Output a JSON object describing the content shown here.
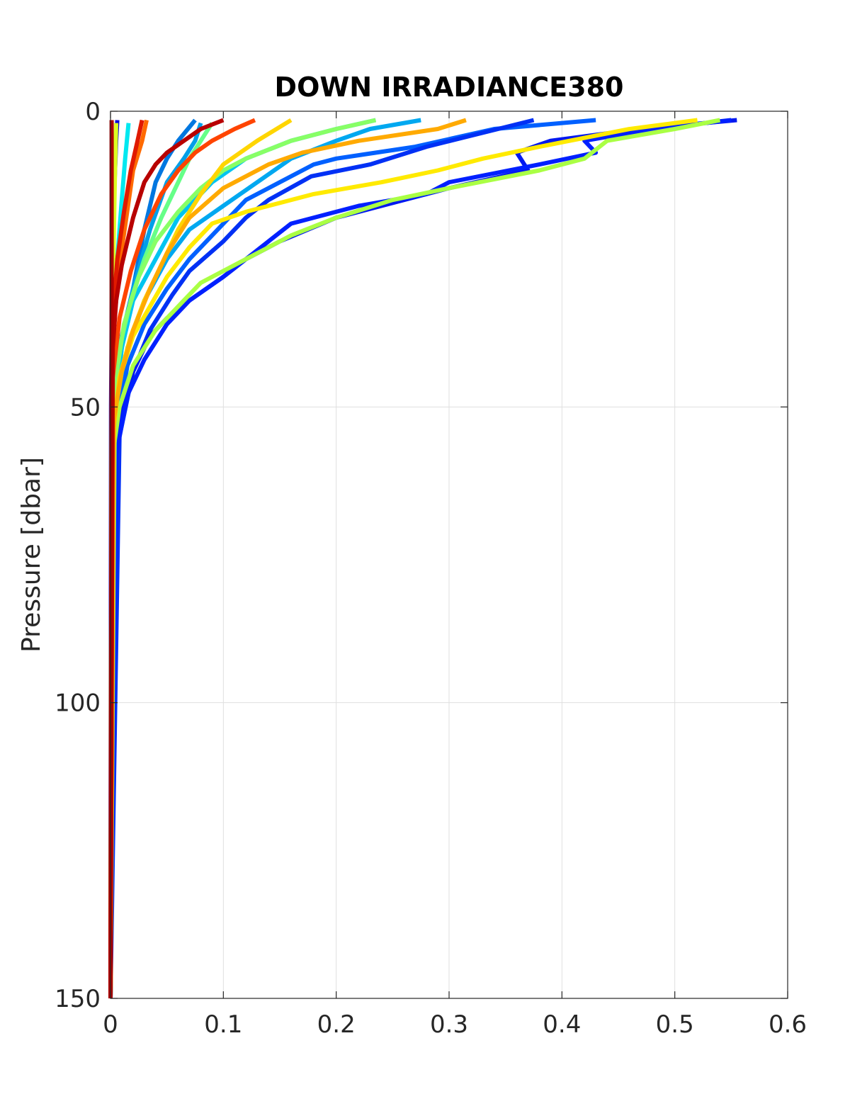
{
  "chart_data": {
    "type": "line",
    "title": "DOWN IRRADIANCE380",
    "xlabel": "",
    "ylabel": "Pressure [dbar]",
    "xlim": [
      0,
      0.6
    ],
    "ylim": [
      150,
      0
    ],
    "y_reversed": true,
    "xticks": [
      "0",
      "0.1",
      "0.2",
      "0.3",
      "0.4",
      "0.5",
      "0.6"
    ],
    "yticks": [
      "0",
      "50",
      "100",
      "150"
    ],
    "grid": true,
    "legend": "none",
    "series": [
      {
        "color": "#0a0ad8",
        "x": [
          0.006,
          0.005,
          0.004,
          0.002,
          0.001,
          0.0005,
          0
        ],
        "y": [
          1.5,
          5,
          10,
          20,
          35,
          50,
          150
        ]
      },
      {
        "color": "#0077e0",
        "x": [
          0.075,
          0.06,
          0.05,
          0.04,
          0.03,
          0.02,
          0.01,
          0.005,
          0.002,
          0
        ],
        "y": [
          1.5,
          5,
          8,
          12,
          20,
          30,
          38,
          45,
          55,
          150
        ]
      },
      {
        "color": "#009fe8",
        "x": [
          0.08,
          0.075,
          0.065,
          0.05,
          0.035,
          0.02,
          0.01,
          0.004,
          0
        ],
        "y": [
          2,
          5,
          8,
          12,
          20,
          30,
          40,
          50,
          150
        ]
      },
      {
        "color": "#00e8f0",
        "x": [
          0.016,
          0.013,
          0.01,
          0.006,
          0.003,
          0.001,
          0
        ],
        "y": [
          2,
          8,
          15,
          25,
          35,
          45,
          150
        ]
      },
      {
        "color": "#00c4f0",
        "x": [
          0.235,
          0.2,
          0.16,
          0.12,
          0.09,
          0.06,
          0.04,
          0.02,
          0.01,
          0.003,
          0
        ],
        "y": [
          1.5,
          3,
          5,
          8,
          12,
          18,
          25,
          32,
          40,
          52,
          150
        ]
      },
      {
        "color": "#00a8f0",
        "x": [
          0.275,
          0.23,
          0.2,
          0.16,
          0.13,
          0.1,
          0.07,
          0.05,
          0.03,
          0.015,
          0.004,
          0
        ],
        "y": [
          1.5,
          3,
          5,
          8,
          12,
          16,
          20,
          25,
          32,
          40,
          52,
          150
        ]
      },
      {
        "color": "#0060ff",
        "x": [
          0.43,
          0.34,
          0.27,
          0.2,
          0.18,
          0.14,
          0.12,
          0.095,
          0.07,
          0.05,
          0.03,
          0.015,
          0.004,
          0
        ],
        "y": [
          1.5,
          3,
          6,
          8,
          9,
          13,
          15,
          20,
          25,
          30,
          36,
          43,
          55,
          150
        ]
      },
      {
        "color": "#0030f5",
        "x": [
          0.375,
          0.28,
          0.23,
          0.178,
          0.14,
          0.12,
          0.1,
          0.07,
          0.055,
          0.035,
          0.02,
          0.008,
          0
        ],
        "y": [
          1.5,
          6,
          9,
          11,
          15,
          18,
          22,
          27,
          31,
          37,
          44,
          55,
          150
        ]
      },
      {
        "color": "#0018f0",
        "x": [
          0.555,
          0.47,
          0.39,
          0.36,
          0.37,
          0.3,
          0.26,
          0.2,
          0.15,
          0.12,
          0.1,
          0.07,
          0.05,
          0.035,
          0.02,
          0.01,
          0.003,
          0
        ],
        "y": [
          1.5,
          3,
          5,
          7,
          10,
          13,
          15,
          18,
          22,
          25,
          28,
          32,
          35,
          38,
          44,
          50,
          60,
          150
        ]
      },
      {
        "color": "#0020ff",
        "x": [
          0.55,
          0.48,
          0.42,
          0.43,
          0.38,
          0.3,
          0.28,
          0.22,
          0.16,
          0.14,
          0.12,
          0.1,
          0.07,
          0.05,
          0.03,
          0.015,
          0.005,
          0
        ],
        "y": [
          1.5,
          3,
          5,
          7,
          9,
          12,
          14,
          16,
          19,
          22,
          25,
          28,
          32,
          36,
          42,
          48,
          58,
          150
        ]
      },
      {
        "color": "#66ff88",
        "x": [
          0.09,
          0.08,
          0.07,
          0.06,
          0.045,
          0.03,
          0.018,
          0.008,
          0.002,
          0
        ],
        "y": [
          2,
          5,
          8,
          12,
          18,
          25,
          32,
          40,
          50,
          150
        ]
      },
      {
        "color": "#88ff66",
        "x": [
          0.235,
          0.2,
          0.16,
          0.12,
          0.1,
          0.08,
          0.06,
          0.04,
          0.025,
          0.012,
          0.004,
          0
        ],
        "y": [
          1.5,
          3,
          5,
          8,
          10,
          13,
          17,
          22,
          28,
          36,
          46,
          150
        ]
      },
      {
        "color": "#aaff44",
        "x": [
          0.54,
          0.5,
          0.44,
          0.42,
          0.38,
          0.3,
          0.25,
          0.2,
          0.16,
          0.12,
          0.08,
          0.06,
          0.04,
          0.02,
          0.008,
          0.002,
          0
        ],
        "y": [
          1.5,
          3,
          5,
          8,
          10,
          13,
          15,
          18,
          21,
          25,
          29,
          33,
          37,
          43,
          50,
          58,
          150
        ]
      },
      {
        "color": "#ddff22",
        "x": [
          0.005,
          0.004,
          0.003,
          0.002,
          0.001,
          0
        ],
        "y": [
          2,
          10,
          20,
          30,
          40,
          150
        ]
      },
      {
        "color": "#ffea00",
        "x": [
          0.52,
          0.46,
          0.38,
          0.33,
          0.29,
          0.24,
          0.18,
          0.12,
          0.09,
          0.07,
          0.05,
          0.035,
          0.02,
          0.01,
          0.003,
          0
        ],
        "y": [
          1.5,
          3,
          6,
          8,
          10,
          12,
          14,
          17,
          19,
          23,
          28,
          33,
          38,
          44,
          52,
          150
        ]
      },
      {
        "color": "#ffd500",
        "x": [
          0.16,
          0.13,
          0.1,
          0.08,
          0.06,
          0.045,
          0.03,
          0.018,
          0.008,
          0.002,
          0
        ],
        "y": [
          1.5,
          5,
          9,
          14,
          20,
          26,
          32,
          38,
          45,
          55,
          150
        ]
      },
      {
        "color": "#ffaa00",
        "x": [
          0.315,
          0.29,
          0.22,
          0.17,
          0.14,
          0.1,
          0.07,
          0.05,
          0.035,
          0.02,
          0.01,
          0.003,
          0
        ],
        "y": [
          1.5,
          3,
          5,
          7,
          9,
          13,
          18,
          24,
          30,
          37,
          44,
          52,
          150
        ]
      },
      {
        "color": "#ff6a00",
        "x": [
          0.032,
          0.028,
          0.02,
          0.014,
          0.008,
          0.003,
          0.001,
          0
        ],
        "y": [
          1.5,
          5,
          10,
          18,
          26,
          36,
          46,
          150
        ]
      },
      {
        "color": "#ff4400",
        "x": [
          0.128,
          0.11,
          0.09,
          0.075,
          0.06,
          0.045,
          0.03,
          0.018,
          0.008,
          0.002,
          0
        ],
        "y": [
          1.5,
          3,
          5,
          7,
          10,
          14,
          20,
          27,
          35,
          45,
          150
        ]
      },
      {
        "color": "#e01a00",
        "x": [
          0.028,
          0.024,
          0.018,
          0.012,
          0.006,
          0.002,
          0
        ],
        "y": [
          1.5,
          5,
          10,
          17,
          25,
          35,
          150
        ]
      },
      {
        "color": "#b80000",
        "x": [
          0.1,
          0.08,
          0.065,
          0.05,
          0.04,
          0.03,
          0.025,
          0.02,
          0.015,
          0.01,
          0.005,
          0.002,
          0
        ],
        "y": [
          1.5,
          3,
          5,
          7,
          9,
          12,
          15,
          18,
          22,
          26,
          32,
          40,
          150
        ]
      },
      {
        "color": "#aa0000",
        "x": [
          0.001,
          0.001,
          0.0005,
          0
        ],
        "y": [
          1.5,
          50,
          100,
          150
        ]
      }
    ]
  }
}
